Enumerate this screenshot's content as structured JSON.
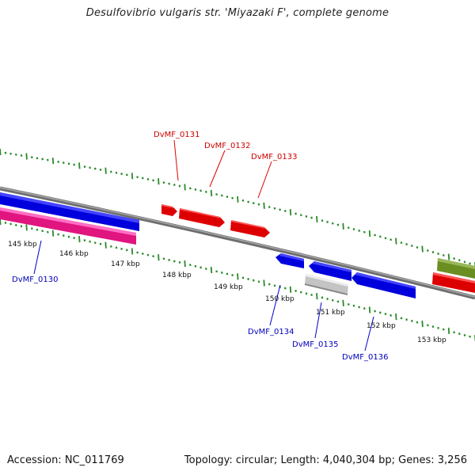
{
  "title": "Desulfovibrio vulgaris str. 'Miyazaki F', complete genome",
  "footer": {
    "accession": "Accession: NC_011769",
    "summary": "Topology: circular; Length: 4,040,304 bp; Genes: 3,256"
  },
  "colors": {
    "backbone": "#808080",
    "tick_dots": "#2a8a2a",
    "forward_gene": "#ee0000",
    "reverse_gene": "#0000ee",
    "pink_gene": "#ff2aa0",
    "gray_gene": "#c8c8c8",
    "olive_gene": "#6b8e23",
    "label_forward": "#cc0000",
    "label_reverse": "#0000bb"
  },
  "scale_labels": [
    "145 kbp",
    "146 kbp",
    "147 kbp",
    "148 kbp",
    "149 kbp",
    "150 kbp",
    "151 kbp",
    "152 kbp",
    "153 kbp"
  ],
  "gene_labels": {
    "forward": [
      "DvMF_0131",
      "DvMF_0132",
      "DvMF_0133"
    ],
    "reverse": [
      "DvMF_0130",
      "DvMF_0134",
      "DvMF_0135",
      "DvMF_0136"
    ]
  }
}
